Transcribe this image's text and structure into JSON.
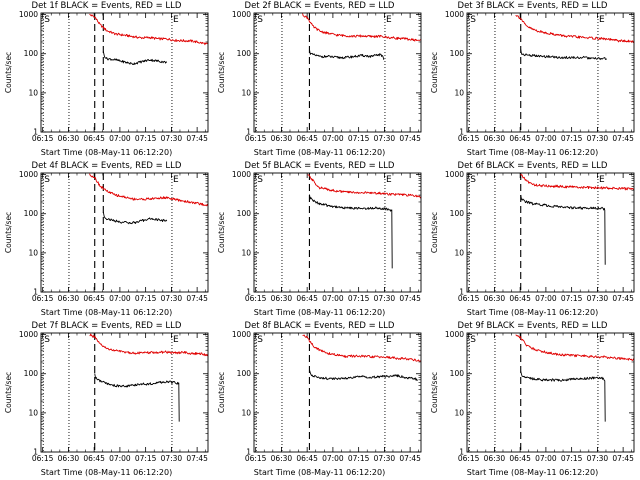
{
  "colors": {
    "events": "#000000",
    "lld": "#e00000",
    "axis": "#000000"
  },
  "chart_data": [
    {
      "type": "line",
      "scale": "log",
      "title": "Det 1f BLACK = Events, RED = LLD",
      "xlabel": "Start Time (08-May-11 06:12:20)",
      "ylabel": "Counts/sec",
      "xticks": [
        "06:15",
        "06:30",
        "06:45",
        "07:00",
        "07:15",
        "07:30",
        "07:45"
      ],
      "yticks": [
        "1",
        "10",
        "100",
        "1000"
      ],
      "xlim_min": [
        1.7,
        99
      ],
      "ylim": [
        1,
        1100
      ],
      "annotations": [
        "S",
        "E"
      ],
      "s_min": 3,
      "e_min": 78,
      "dotted_min": [
        3,
        18,
        78
      ],
      "dashed_min": [
        33,
        38
      ],
      "series": [
        {
          "x": [
            30,
            33,
            36,
            40,
            45,
            50,
            55,
            60,
            65,
            70,
            75,
            80,
            85,
            90,
            95,
            99
          ],
          "y": [
            1000,
            880,
            560,
            390,
            320,
            300,
            275,
            255,
            260,
            240,
            240,
            220,
            215,
            210,
            190,
            175
          ]
        },
        {
          "x": [
            38,
            38.5,
            40,
            45,
            50,
            55,
            60,
            65,
            70,
            75
          ],
          "y": [
            110,
            90,
            75,
            70,
            62,
            55,
            62,
            70,
            65,
            60
          ]
        }
      ]
    },
    {
      "type": "line",
      "scale": "log",
      "title": "Det 2f BLACK = Events, RED = LLD",
      "xlabel": "Start Time (08-May-11 06:12:20)",
      "ylabel": "Counts/sec",
      "xticks": [
        "06:15",
        "06:30",
        "06:45",
        "07:00",
        "07:15",
        "07:30",
        "07:45"
      ],
      "yticks": [
        "1",
        "10",
        "100",
        "1000"
      ],
      "xlim_min": [
        1.7,
        99
      ],
      "ylim": [
        1,
        1100
      ],
      "annotations": [
        "S",
        "E"
      ],
      "s_min": 3,
      "e_min": 78,
      "dotted_min": [
        3,
        18,
        78
      ],
      "dashed_min": [
        34
      ],
      "series": [
        {
          "x": [
            30,
            33,
            36,
            40,
            45,
            50,
            55,
            60,
            65,
            70,
            75,
            80,
            85,
            90,
            95,
            99
          ],
          "y": [
            1000,
            820,
            500,
            380,
            330,
            300,
            290,
            280,
            285,
            275,
            280,
            260,
            250,
            240,
            225,
            220
          ]
        },
        {
          "x": [
            34,
            34.5,
            36,
            40,
            45,
            50,
            55,
            60,
            65,
            70,
            75,
            77,
            77.3
          ],
          "y": [
            140,
            100,
            95,
            85,
            85,
            80,
            80,
            85,
            90,
            85,
            95,
            85,
            70
          ]
        }
      ]
    },
    {
      "type": "line",
      "scale": "log",
      "title": "Det 3f BLACK = Events, RED = LLD",
      "xlabel": "Start Time (08-May-11 06:12:20)",
      "ylabel": "Counts/sec",
      "xticks": [
        "06:15",
        "06:30",
        "06:45",
        "07:00",
        "07:15",
        "07:30",
        "07:45"
      ],
      "yticks": [
        "1",
        "10",
        "100",
        "1000"
      ],
      "xlim_min": [
        1.7,
        99
      ],
      "ylim": [
        1,
        1100
      ],
      "annotations": [
        "S",
        "E"
      ],
      "s_min": 3,
      "e_min": 78,
      "dotted_min": [
        3,
        18,
        78
      ],
      "dashed_min": [
        33
      ],
      "series": [
        {
          "x": [
            30,
            33,
            36,
            40,
            45,
            50,
            55,
            60,
            65,
            70,
            75,
            80,
            85,
            90,
            95,
            99
          ],
          "y": [
            1000,
            800,
            520,
            420,
            360,
            330,
            300,
            280,
            270,
            260,
            250,
            245,
            230,
            215,
            210,
            200
          ]
        },
        {
          "x": [
            33,
            33.5,
            35,
            40,
            45,
            50,
            55,
            60,
            65,
            70,
            75,
            80,
            83
          ],
          "y": [
            130,
            100,
            95,
            90,
            85,
            85,
            80,
            80,
            80,
            80,
            75,
            75,
            75
          ]
        }
      ]
    },
    {
      "type": "line",
      "scale": "log",
      "title": "Det 4f BLACK = Events, RED = LLD",
      "xlabel": "Start Time (08-May-11 06:12:20)",
      "ylabel": "Counts/sec",
      "xticks": [
        "06:15",
        "06:30",
        "06:45",
        "07:00",
        "07:15",
        "07:30",
        "07:45"
      ],
      "yticks": [
        "1",
        "10",
        "100",
        "1000"
      ],
      "xlim_min": [
        1.7,
        99
      ],
      "ylim": [
        1,
        1100
      ],
      "annotations": [
        "S",
        "E"
      ],
      "s_min": 3,
      "e_min": 78,
      "dotted_min": [
        3,
        18,
        78
      ],
      "dashed_min": [
        33,
        38
      ],
      "series": [
        {
          "x": [
            30,
            33,
            36,
            40,
            45,
            50,
            55,
            60,
            65,
            70,
            75,
            80,
            85,
            90,
            95,
            99
          ],
          "y": [
            1000,
            850,
            520,
            380,
            300,
            270,
            240,
            235,
            240,
            250,
            260,
            230,
            210,
            195,
            175,
            165
          ]
        },
        {
          "x": [
            38,
            38.5,
            40,
            45,
            50,
            55,
            60,
            65,
            70,
            75
          ],
          "y": [
            110,
            85,
            75,
            65,
            60,
            58,
            65,
            75,
            70,
            65
          ]
        }
      ]
    },
    {
      "type": "line",
      "scale": "log",
      "title": "Det 5f BLACK = Events, RED = LLD",
      "xlabel": "Start Time (08-May-11 06:12:20)",
      "ylabel": "Counts/sec",
      "xticks": [
        "06:15",
        "06:30",
        "06:45",
        "07:00",
        "07:15",
        "07:30",
        "07:45"
      ],
      "yticks": [
        "1",
        "10",
        "100",
        "1000"
      ],
      "xlim_min": [
        1.7,
        99
      ],
      "ylim": [
        1,
        1100
      ],
      "annotations": [
        "S",
        "E"
      ],
      "s_min": 3,
      "e_min": 78,
      "dotted_min": [
        3,
        18,
        78
      ],
      "dashed_min": [
        34
      ],
      "series": [
        {
          "x": [
            33,
            35,
            38,
            40,
            45,
            50,
            55,
            60,
            65,
            70,
            75,
            80,
            85,
            90,
            95,
            99
          ],
          "y": [
            1000,
            800,
            560,
            460,
            420,
            380,
            360,
            350,
            345,
            340,
            335,
            320,
            310,
            300,
            290,
            270
          ]
        },
        {
          "x": [
            34,
            34.5,
            36,
            40,
            45,
            50,
            55,
            60,
            65,
            70,
            75,
            80,
            82,
            82.2
          ],
          "y": [
            300,
            250,
            220,
            180,
            160,
            150,
            140,
            140,
            135,
            140,
            140,
            130,
            120,
            4
          ]
        }
      ]
    },
    {
      "type": "line",
      "scale": "log",
      "title": "Det 6f BLACK = Events, RED = LLD",
      "xlabel": "Start Time (08-May-11 06:12:20)",
      "ylabel": "Counts/sec",
      "xticks": [
        "06:15",
        "06:30",
        "06:45",
        "07:00",
        "07:15",
        "07:30",
        "07:45"
      ],
      "yticks": [
        "1",
        "10",
        "100",
        "1000"
      ],
      "xlim_min": [
        1.7,
        99
      ],
      "ylim": [
        1,
        1100
      ],
      "annotations": [
        "S",
        "E"
      ],
      "s_min": 3,
      "e_min": 78,
      "dotted_min": [
        3,
        18,
        78
      ],
      "dashed_min": [
        33
      ],
      "series": [
        {
          "x": [
            33,
            35,
            38,
            40,
            45,
            50,
            55,
            60,
            65,
            70,
            75,
            80,
            85,
            90,
            95,
            99
          ],
          "y": [
            1000,
            800,
            620,
            560,
            520,
            510,
            500,
            490,
            480,
            470,
            460,
            460,
            450,
            445,
            435,
            430
          ]
        },
        {
          "x": [
            33,
            33.5,
            35,
            40,
            45,
            50,
            55,
            60,
            65,
            70,
            75,
            80,
            82,
            82.2
          ],
          "y": [
            300,
            240,
            210,
            180,
            170,
            160,
            150,
            145,
            140,
            140,
            140,
            140,
            130,
            5
          ]
        }
      ]
    },
    {
      "type": "line",
      "scale": "log",
      "title": "Det 7f BLACK = Events, RED = LLD",
      "xlabel": "Start Time (08-May-11 06:12:20)",
      "ylabel": "Counts/sec",
      "xticks": [
        "06:15",
        "06:30",
        "06:45",
        "07:00",
        "07:15",
        "07:30",
        "07:45"
      ],
      "yticks": [
        "1",
        "10",
        "100",
        "1000"
      ],
      "xlim_min": [
        1.7,
        99
      ],
      "ylim": [
        1,
        1100
      ],
      "annotations": [
        "S",
        "E"
      ],
      "s_min": 3,
      "e_min": 78,
      "dotted_min": [
        3,
        18,
        78
      ],
      "dashed_min": [
        33
      ],
      "series": [
        {
          "x": [
            30,
            33,
            36,
            40,
            45,
            50,
            55,
            60,
            65,
            70,
            75,
            80,
            85,
            90,
            95,
            99
          ],
          "y": [
            1000,
            860,
            570,
            440,
            390,
            360,
            340,
            340,
            345,
            350,
            360,
            340,
            350,
            330,
            320,
            300
          ]
        },
        {
          "x": [
            33,
            33.5,
            35,
            40,
            45,
            50,
            55,
            60,
            65,
            70,
            75,
            80,
            82,
            82.2
          ],
          "y": [
            100,
            80,
            70,
            55,
            50,
            48,
            50,
            55,
            55,
            60,
            62,
            60,
            55,
            6
          ]
        }
      ]
    },
    {
      "type": "line",
      "scale": "log",
      "title": "Det 8f BLACK = Events, RED = LLD",
      "xlabel": "Start Time (08-May-11 06:12:20)",
      "ylabel": "Counts/sec",
      "xticks": [
        "06:15",
        "06:30",
        "06:45",
        "07:00",
        "07:15",
        "07:30",
        "07:45"
      ],
      "yticks": [
        "1",
        "10",
        "100",
        "1000"
      ],
      "xlim_min": [
        1.7,
        99
      ],
      "ylim": [
        1,
        1100
      ],
      "annotations": [
        "S",
        "E"
      ],
      "s_min": 3,
      "e_min": 78,
      "dotted_min": [
        3,
        18,
        78
      ],
      "dashed_min": [
        34
      ],
      "series": [
        {
          "x": [
            30,
            33,
            36,
            40,
            45,
            50,
            55,
            60,
            65,
            70,
            75,
            80,
            85,
            90,
            95,
            99
          ],
          "y": [
            1000,
            820,
            530,
            400,
            330,
            300,
            280,
            280,
            280,
            270,
            270,
            260,
            250,
            240,
            230,
            210
          ]
        },
        {
          "x": [
            34,
            34.5,
            36,
            40,
            45,
            50,
            55,
            60,
            65,
            70,
            75,
            80,
            85,
            90,
            95,
            97
          ],
          "y": [
            120,
            100,
            90,
            80,
            75,
            75,
            75,
            80,
            85,
            80,
            85,
            85,
            90,
            80,
            75,
            70
          ]
        }
      ]
    },
    {
      "type": "line",
      "scale": "log",
      "title": "Det 9f BLACK = Events, RED = LLD",
      "xlabel": "Start Time (08-May-11 06:12:20)",
      "ylabel": "Counts/sec",
      "xticks": [
        "06:15",
        "06:30",
        "06:45",
        "07:00",
        "07:15",
        "07:30",
        "07:45"
      ],
      "yticks": [
        "1",
        "10",
        "100",
        "1000"
      ],
      "xlim_min": [
        1.7,
        99
      ],
      "ylim": [
        1,
        1100
      ],
      "annotations": [
        "S",
        "E"
      ],
      "s_min": 3,
      "e_min": 78,
      "dotted_min": [
        3,
        18,
        78
      ],
      "dashed_min": [
        33
      ],
      "series": [
        {
          "x": [
            30,
            33,
            36,
            40,
            45,
            50,
            55,
            60,
            65,
            70,
            75,
            80,
            85,
            90,
            95,
            99
          ],
          "y": [
            1000,
            840,
            560,
            440,
            380,
            340,
            310,
            300,
            290,
            285,
            270,
            270,
            260,
            250,
            240,
            230
          ]
        },
        {
          "x": [
            33,
            33.5,
            35,
            40,
            45,
            50,
            55,
            60,
            65,
            70,
            75,
            80,
            82,
            82.2
          ],
          "y": [
            120,
            95,
            85,
            75,
            70,
            70,
            68,
            70,
            75,
            75,
            78,
            78,
            70,
            6
          ]
        }
      ]
    }
  ]
}
